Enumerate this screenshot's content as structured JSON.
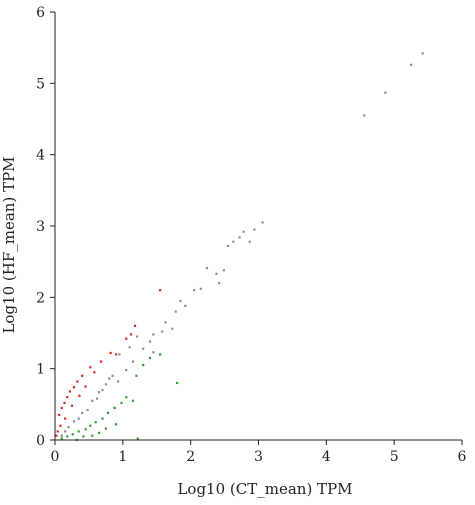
{
  "chart_data": {
    "type": "scatter",
    "title": "",
    "xlabel": "Log10 (CT_mean) TPM",
    "ylabel": "Log10 (HF_mean) TPM",
    "xlim": [
      0,
      6
    ],
    "ylim": [
      0,
      6
    ],
    "xticks": [
      "0",
      "1",
      "2",
      "3",
      "4",
      "5",
      "6"
    ],
    "yticks": [
      "0",
      "1",
      "2",
      "3",
      "4",
      "5",
      "6"
    ],
    "grid": false,
    "legend": "none",
    "series": [
      {
        "color": "#8c8c8c",
        "points": [
          [
            5.42,
            5.42
          ],
          [
            5.25,
            5.26
          ],
          [
            4.87,
            4.87
          ],
          [
            4.56,
            4.55
          ],
          [
            3.06,
            3.05
          ],
          [
            2.94,
            2.95
          ],
          [
            2.78,
            2.92
          ],
          [
            2.72,
            2.84
          ],
          [
            2.87,
            2.78
          ],
          [
            2.63,
            2.78
          ],
          [
            2.55,
            2.72
          ],
          [
            2.49,
            2.38
          ],
          [
            2.38,
            2.33
          ],
          [
            2.24,
            2.41
          ],
          [
            2.42,
            2.2
          ],
          [
            1.63,
            1.65
          ],
          [
            1.58,
            1.52
          ],
          [
            1.45,
            1.48
          ],
          [
            1.73,
            1.56
          ],
          [
            1.21,
            1.45
          ],
          [
            1.3,
            1.28
          ],
          [
            1.45,
            1.23
          ],
          [
            1.1,
            1.3
          ],
          [
            0.95,
            1.2
          ],
          [
            1.05,
            0.98
          ],
          [
            0.85,
            0.9
          ],
          [
            0.93,
            0.82
          ],
          [
            0.75,
            0.78
          ],
          [
            0.7,
            0.7
          ],
          [
            0.62,
            0.58
          ],
          [
            0.55,
            0.55
          ],
          [
            0.48,
            0.42
          ],
          [
            0.4,
            0.38
          ],
          [
            0.35,
            0.3
          ],
          [
            0.28,
            0.26
          ],
          [
            0.2,
            0.18
          ],
          [
            0.15,
            0.12
          ],
          [
            0.1,
            0.06
          ],
          [
            2.05,
            2.1
          ],
          [
            1.92,
            1.88
          ],
          [
            1.85,
            1.95
          ],
          [
            1.78,
            1.8
          ],
          [
            2.15,
            2.12
          ],
          [
            1.4,
            1.38
          ],
          [
            1.15,
            1.1
          ],
          [
            0.8,
            0.86
          ],
          [
            0.65,
            0.67
          ]
        ]
      },
      {
        "color": "#d42a2a",
        "points": [
          [
            0.06,
            0.35
          ],
          [
            0.1,
            0.45
          ],
          [
            0.14,
            0.52
          ],
          [
            0.18,
            0.6
          ],
          [
            0.22,
            0.68
          ],
          [
            0.28,
            0.74
          ],
          [
            0.33,
            0.82
          ],
          [
            0.4,
            0.9
          ],
          [
            0.52,
            1.02
          ],
          [
            0.58,
            0.95
          ],
          [
            0.68,
            1.1
          ],
          [
            0.82,
            1.22
          ],
          [
            0.9,
            1.2
          ],
          [
            1.05,
            1.42
          ],
          [
            1.12,
            1.48
          ],
          [
            1.55,
            2.1
          ],
          [
            1.18,
            1.6
          ],
          [
            0.08,
            0.2
          ],
          [
            0.04,
            0.12
          ],
          [
            0.15,
            0.3
          ],
          [
            0.25,
            0.48
          ],
          [
            0.36,
            0.62
          ],
          [
            0.45,
            0.75
          ],
          [
            0.02,
            0.06
          ]
        ]
      },
      {
        "color": "#2e9a3a",
        "points": [
          [
            0.1,
            0.02
          ],
          [
            0.18,
            0.05
          ],
          [
            0.26,
            0.08
          ],
          [
            0.35,
            0.12
          ],
          [
            0.45,
            0.15
          ],
          [
            0.52,
            0.2
          ],
          [
            0.6,
            0.25
          ],
          [
            0.7,
            0.3
          ],
          [
            0.78,
            0.38
          ],
          [
            0.88,
            0.45
          ],
          [
            0.98,
            0.52
          ],
          [
            1.05,
            0.6
          ],
          [
            1.2,
            0.9
          ],
          [
            1.3,
            1.05
          ],
          [
            1.4,
            1.15
          ],
          [
            1.55,
            1.2
          ],
          [
            1.8,
            0.8
          ],
          [
            1.15,
            0.55
          ],
          [
            0.9,
            0.22
          ],
          [
            1.22,
            0.02
          ],
          [
            0.42,
            0.05
          ],
          [
            0.65,
            0.1
          ],
          [
            0.32,
            0.0
          ],
          [
            0.55,
            0.06
          ],
          [
            0.75,
            0.16
          ]
        ]
      }
    ]
  }
}
